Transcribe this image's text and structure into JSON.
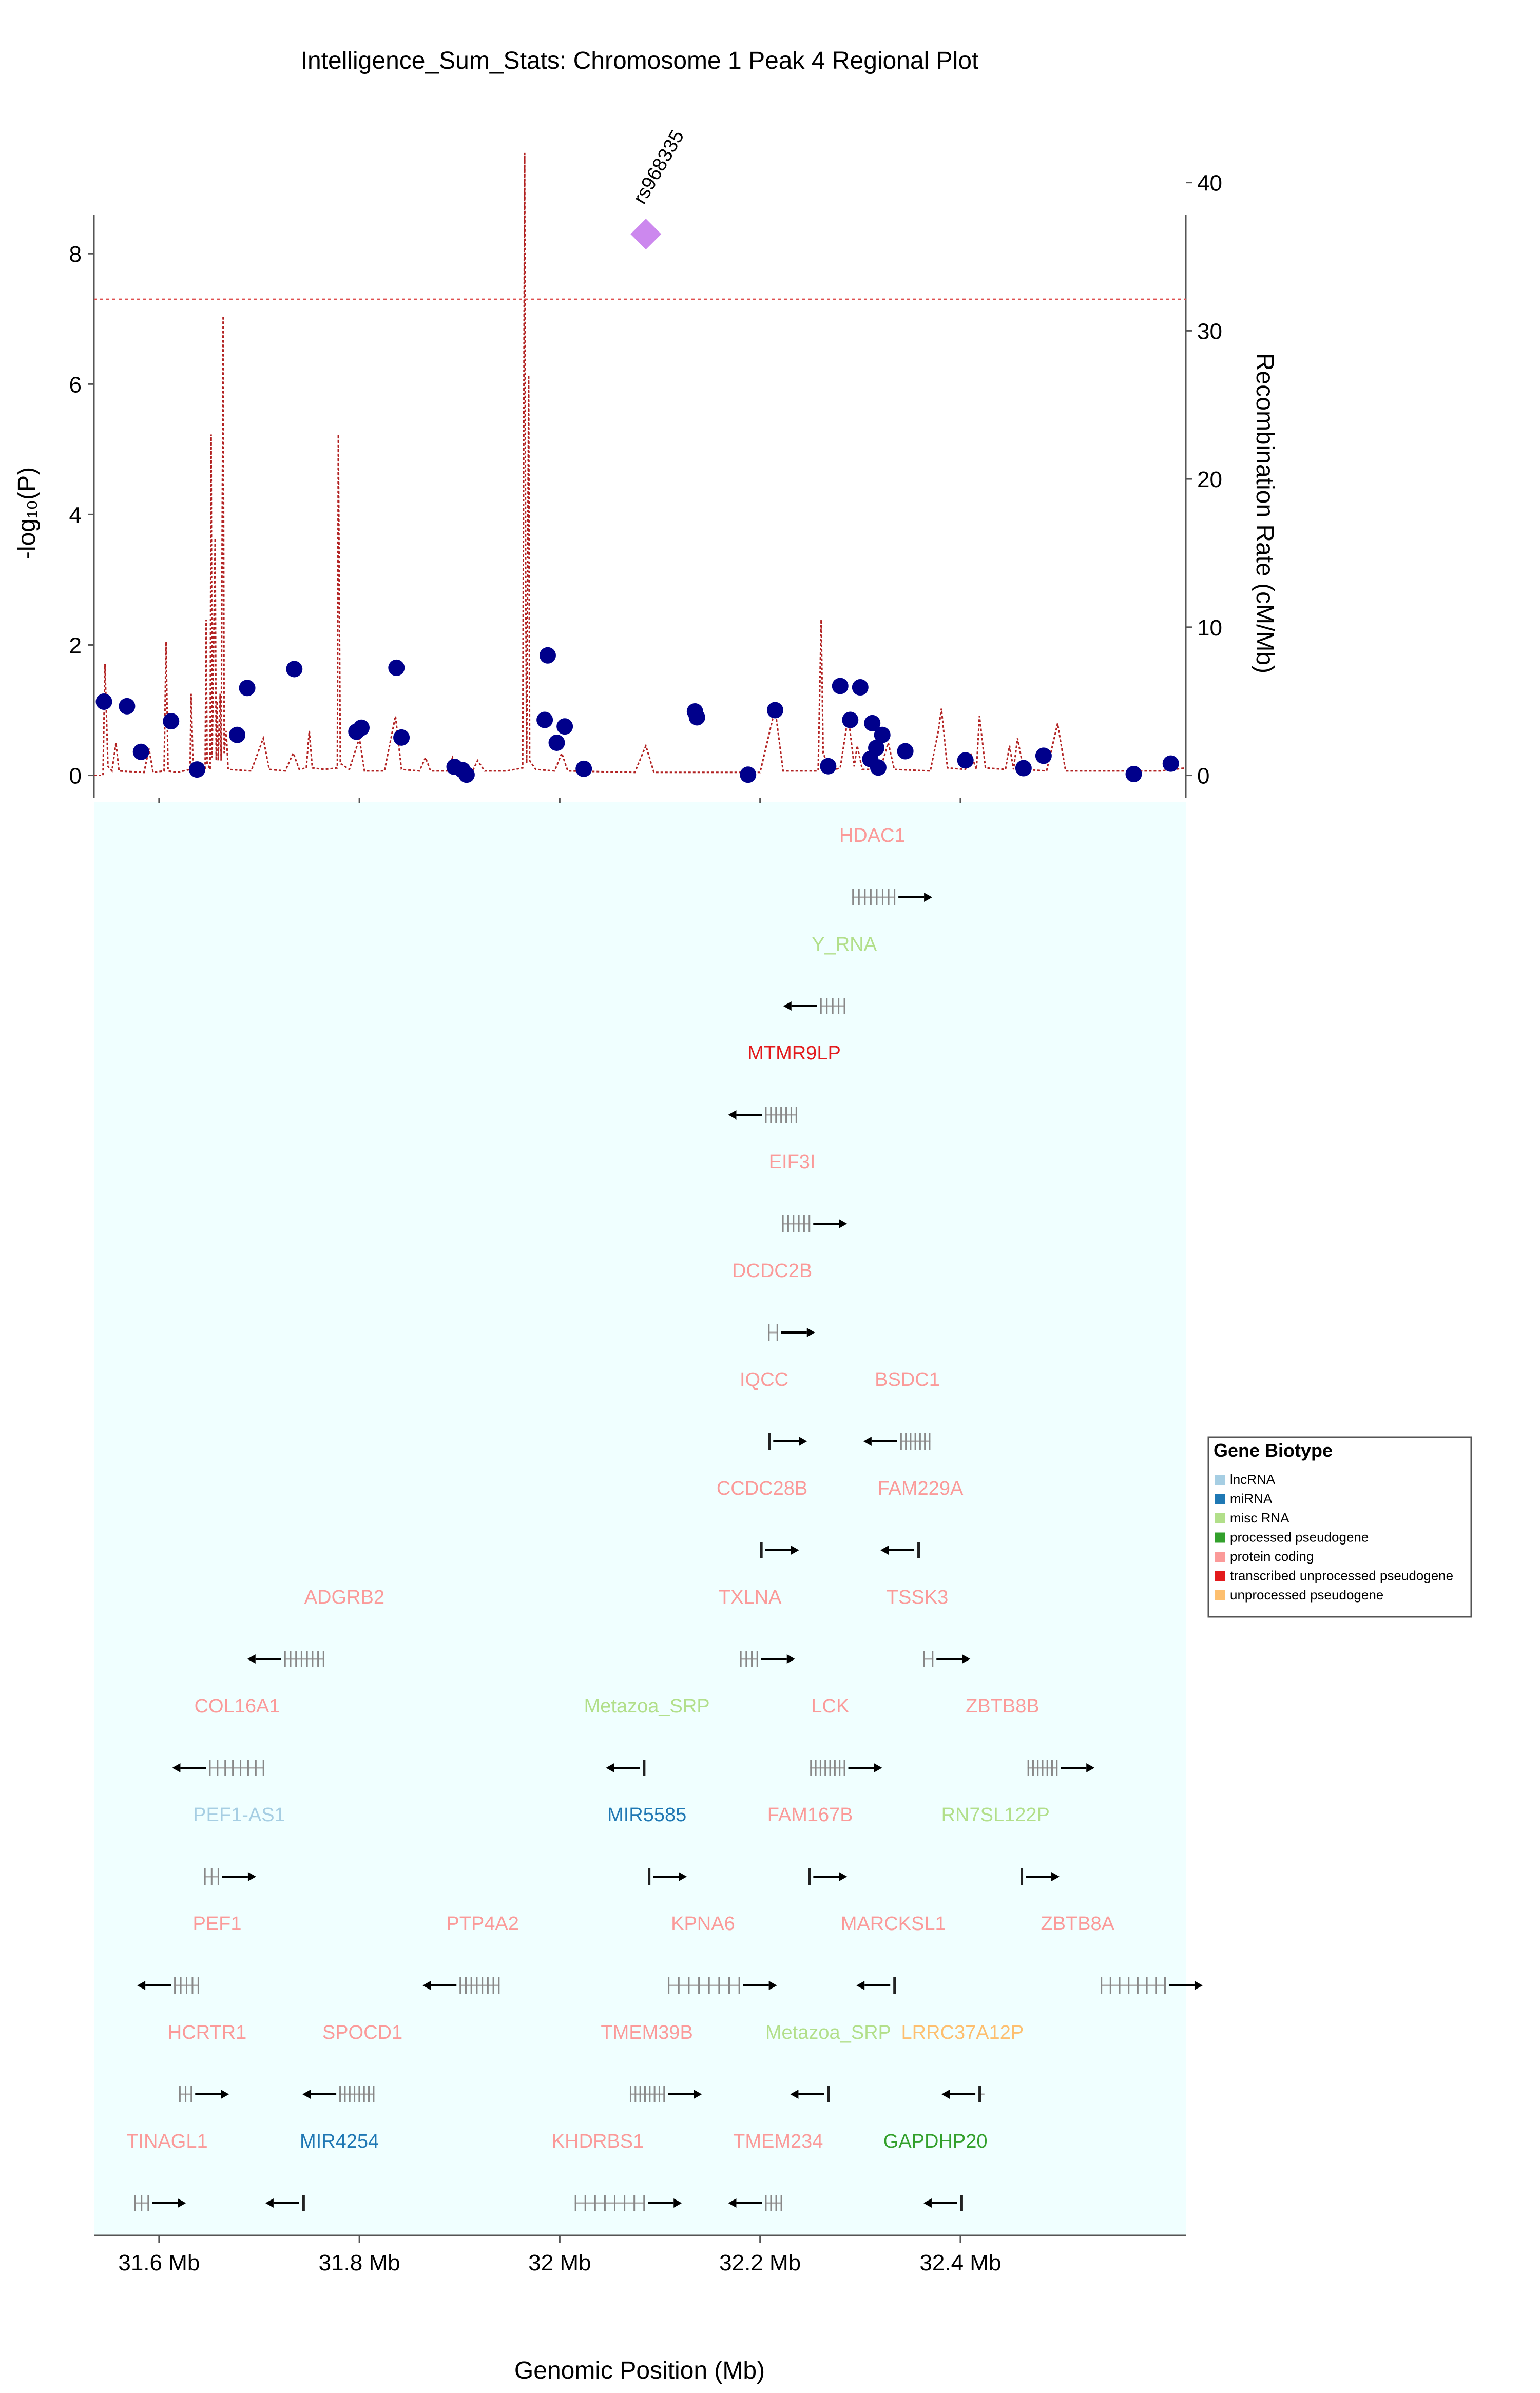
{
  "title": "Intelligence_Sum_Stats: Chromosome 1 Peak 4 Regional Plot",
  "colors": {
    "snp": "#00008b",
    "lead_snp": "#cc88ee",
    "recomb": "#b22222",
    "threshold": "#e05050",
    "gene_track_bg": "#f0ffff",
    "gene_arrow": "#000000"
  },
  "chart_data": {
    "type": "scatter",
    "title": "Intelligence_Sum_Stats: Chromosome 1 Peak 4 Regional Plot",
    "xlabel": "Genomic Position (Mb)",
    "ylabel": "-log₁₀(P)",
    "y2label": "Recombination Rate (cM/Mb)",
    "xlim": [
      31.535,
      32.625
    ],
    "ylim": [
      -0.35,
      8.6
    ],
    "y2lim": [
      -1.54,
      37.84
    ],
    "x_ticks": [
      {
        "value": 31.6,
        "label": "31.6 Mb"
      },
      {
        "value": 31.8,
        "label": "31.8 Mb"
      },
      {
        "value": 32.0,
        "label": "32 Mb"
      },
      {
        "value": 32.2,
        "label": "32.2 Mb"
      },
      {
        "value": 32.4,
        "label": "32.4 Mb"
      }
    ],
    "y_ticks": [
      0,
      2,
      4,
      6,
      8
    ],
    "y2_ticks": [
      0,
      10,
      20,
      30,
      40
    ],
    "significance_threshold": 7.3,
    "lead_snp": {
      "id": "rs968335",
      "x": 32.086,
      "y": 8.3
    },
    "snps": [
      {
        "x": 31.545,
        "y": 1.13
      },
      {
        "x": 31.568,
        "y": 1.06
      },
      {
        "x": 31.582,
        "y": 0.36
      },
      {
        "x": 31.612,
        "y": 0.83
      },
      {
        "x": 31.638,
        "y": 0.09
      },
      {
        "x": 31.678,
        "y": 0.62
      },
      {
        "x": 31.688,
        "y": 1.34
      },
      {
        "x": 31.735,
        "y": 1.63
      },
      {
        "x": 31.797,
        "y": 0.67
      },
      {
        "x": 31.802,
        "y": 0.73
      },
      {
        "x": 31.837,
        "y": 1.65
      },
      {
        "x": 31.842,
        "y": 0.58
      },
      {
        "x": 31.895,
        "y": 0.13
      },
      {
        "x": 31.903,
        "y": 0.08
      },
      {
        "x": 31.907,
        "y": 0.01
      },
      {
        "x": 31.985,
        "y": 0.85
      },
      {
        "x": 31.988,
        "y": 1.84
      },
      {
        "x": 31.997,
        "y": 0.5
      },
      {
        "x": 32.005,
        "y": 0.75
      },
      {
        "x": 32.024,
        "y": 0.1
      },
      {
        "x": 32.135,
        "y": 0.98
      },
      {
        "x": 32.137,
        "y": 0.89
      },
      {
        "x": 32.188,
        "y": 0.01
      },
      {
        "x": 32.215,
        "y": 1.0
      },
      {
        "x": 32.268,
        "y": 0.14
      },
      {
        "x": 32.28,
        "y": 1.37
      },
      {
        "x": 32.29,
        "y": 0.85
      },
      {
        "x": 32.3,
        "y": 1.35
      },
      {
        "x": 32.31,
        "y": 0.25
      },
      {
        "x": 32.312,
        "y": 0.8
      },
      {
        "x": 32.316,
        "y": 0.42
      },
      {
        "x": 32.318,
        "y": 0.12
      },
      {
        "x": 32.322,
        "y": 0.62
      },
      {
        "x": 32.345,
        "y": 0.37
      },
      {
        "x": 32.405,
        "y": 0.23
      },
      {
        "x": 32.463,
        "y": 0.11
      },
      {
        "x": 32.483,
        "y": 0.3
      },
      {
        "x": 32.573,
        "y": 0.02
      },
      {
        "x": 32.61,
        "y": 0.18
      }
    ],
    "recombination": [
      [
        31.535,
        0
      ],
      [
        31.544,
        0
      ],
      [
        31.546,
        7.5
      ],
      [
        31.549,
        0.6
      ],
      [
        31.553,
        0.3
      ],
      [
        31.557,
        2.2
      ],
      [
        31.56,
        0.3
      ],
      [
        31.585,
        0.2
      ],
      [
        31.59,
        1.8
      ],
      [
        31.594,
        0.2
      ],
      [
        31.605,
        0.3
      ],
      [
        31.607,
        9.0
      ],
      [
        31.609,
        0.3
      ],
      [
        31.618,
        0.2
      ],
      [
        31.631,
        0.4
      ],
      [
        31.632,
        5.5
      ],
      [
        31.634,
        0.6
      ],
      [
        31.646,
        0.3
      ],
      [
        31.647,
        10.5
      ],
      [
        31.648,
        0.8
      ],
      [
        31.651,
        0.4
      ],
      [
        31.652,
        23.0
      ],
      [
        31.653,
        1.2
      ],
      [
        31.656,
        16.0
      ],
      [
        31.657,
        1.0
      ],
      [
        31.658,
        5.0
      ],
      [
        31.659,
        1.0
      ],
      [
        31.661,
        5.5
      ],
      [
        31.662,
        1.0
      ],
      [
        31.664,
        31.0
      ],
      [
        31.665,
        1.5
      ],
      [
        31.667,
        3.0
      ],
      [
        31.669,
        0.4
      ],
      [
        31.692,
        0.3
      ],
      [
        31.704,
        2.5
      ],
      [
        31.71,
        0.4
      ],
      [
        31.726,
        0.3
      ],
      [
        31.734,
        1.5
      ],
      [
        31.74,
        0.4
      ],
      [
        31.747,
        0.5
      ],
      [
        31.75,
        3.0
      ],
      [
        31.753,
        0.5
      ],
      [
        31.765,
        0.4
      ],
      [
        31.778,
        0.5
      ],
      [
        31.779,
        23.0
      ],
      [
        31.781,
        0.8
      ],
      [
        31.79,
        0.4
      ],
      [
        31.8,
        2.5
      ],
      [
        31.805,
        0.3
      ],
      [
        31.825,
        0.3
      ],
      [
        31.836,
        4.0
      ],
      [
        31.842,
        0.4
      ],
      [
        31.86,
        0.3
      ],
      [
        31.866,
        1.2
      ],
      [
        31.871,
        0.3
      ],
      [
        31.888,
        0.3
      ],
      [
        31.893,
        1.2
      ],
      [
        31.898,
        0.3
      ],
      [
        31.913,
        0.3
      ],
      [
        31.918,
        1.0
      ],
      [
        31.925,
        0.3
      ],
      [
        31.947,
        0.3
      ],
      [
        31.963,
        0.5
      ],
      [
        31.965,
        42.0
      ],
      [
        31.966,
        14.0
      ],
      [
        31.967,
        0.8
      ],
      [
        31.969,
        27.0
      ],
      [
        31.97,
        1.0
      ],
      [
        31.976,
        0.4
      ],
      [
        31.995,
        0.3
      ],
      [
        32.002,
        1.5
      ],
      [
        32.008,
        0.3
      ],
      [
        32.075,
        0.2
      ],
      [
        32.086,
        2.0
      ],
      [
        32.094,
        0.2
      ],
      [
        32.2,
        0.2
      ],
      [
        32.215,
        4.5
      ],
      [
        32.223,
        0.3
      ],
      [
        32.258,
        0.3
      ],
      [
        32.261,
        10.5
      ],
      [
        32.263,
        1.5
      ],
      [
        32.27,
        0.3
      ],
      [
        32.28,
        0.5
      ],
      [
        32.288,
        4.0
      ],
      [
        32.294,
        0.6
      ],
      [
        32.297,
        2.0
      ],
      [
        32.302,
        0.4
      ],
      [
        32.32,
        0.4
      ],
      [
        32.328,
        2.2
      ],
      [
        32.334,
        0.4
      ],
      [
        32.37,
        0.3
      ],
      [
        32.378,
        3.0
      ],
      [
        32.381,
        4.5
      ],
      [
        32.387,
        0.5
      ],
      [
        32.405,
        0.4
      ],
      [
        32.41,
        1.5
      ],
      [
        32.416,
        0.4
      ],
      [
        32.419,
        4.0
      ],
      [
        32.425,
        0.5
      ],
      [
        32.445,
        0.4
      ],
      [
        32.449,
        2.0
      ],
      [
        32.453,
        0.4
      ],
      [
        32.457,
        2.5
      ],
      [
        32.463,
        0.4
      ],
      [
        32.486,
        0.3
      ],
      [
        32.497,
        3.5
      ],
      [
        32.505,
        0.3
      ],
      [
        32.6,
        0.3
      ],
      [
        32.625,
        0.5
      ]
    ],
    "gene_biotypes": [
      {
        "name": "lncRNA",
        "color": "#a6cee3"
      },
      {
        "name": "miRNA",
        "color": "#1f78b4"
      },
      {
        "name": "misc RNA",
        "color": "#b2df8a"
      },
      {
        "name": "processed pseudogene",
        "color": "#33a02c"
      },
      {
        "name": "protein coding",
        "color": "#fb9a99"
      },
      {
        "name": "transcribed unprocessed pseudogene",
        "color": "#e31a1c"
      },
      {
        "name": "unprocessed pseudogene",
        "color": "#fdbf6f"
      }
    ],
    "legend_title": "Gene Biotype",
    "legend_position": "right",
    "genes": [
      {
        "name": "HDAC1",
        "biotype": "protein coding",
        "row": 1,
        "start": 32.292,
        "end": 32.335,
        "strand": "+",
        "label_x": 32.312
      },
      {
        "name": "Y_RNA",
        "biotype": "misc RNA",
        "row": 2,
        "start": 32.26,
        "end": 32.285,
        "strand": "-",
        "label_x": 32.284
      },
      {
        "name": "MTMR9LP",
        "biotype": "transcribed unprocessed pseudogene",
        "row": 3,
        "start": 32.205,
        "end": 32.237,
        "strand": "-",
        "label_x": 32.234
      },
      {
        "name": "EIF3I",
        "biotype": "protein coding",
        "row": 4,
        "start": 32.222,
        "end": 32.25,
        "strand": "+",
        "label_x": 32.232
      },
      {
        "name": "DCDC2B",
        "biotype": "protein coding",
        "row": 5,
        "start": 32.208,
        "end": 32.218,
        "strand": "+",
        "label_x": 32.212
      },
      {
        "name": "IQCC",
        "biotype": "protein coding",
        "row": 6,
        "start": 32.208,
        "end": 32.21,
        "strand": "+",
        "label_x": 32.204
      },
      {
        "name": "BSDC1",
        "biotype": "protein coding",
        "row": 6,
        "start": 32.34,
        "end": 32.37,
        "strand": "-",
        "label_x": 32.347
      },
      {
        "name": "CCDC28B",
        "biotype": "protein coding",
        "row": 7,
        "start": 32.2,
        "end": 32.202,
        "strand": "+",
        "label_x": 32.202
      },
      {
        "name": "FAM229A",
        "biotype": "protein coding",
        "row": 7,
        "start": 32.357,
        "end": 32.359,
        "strand": "-",
        "label_x": 32.36
      },
      {
        "name": "TXLNA",
        "biotype": "protein coding",
        "row": 8,
        "start": 32.18,
        "end": 32.198,
        "strand": "+",
        "label_x": 32.19
      },
      {
        "name": "TSSK3",
        "biotype": "protein coding",
        "row": 8,
        "start": 32.363,
        "end": 32.373,
        "strand": "+",
        "label_x": 32.357
      },
      {
        "name": "ADGRB2",
        "biotype": "protein coding",
        "row": 8,
        "start": 31.725,
        "end": 31.765,
        "strand": "-",
        "label_x": 31.785
      },
      {
        "name": "COL16A1",
        "biotype": "protein coding",
        "row": 9,
        "start": 31.65,
        "end": 31.705,
        "strand": "-",
        "label_x": 31.678
      },
      {
        "name": "Metazoa_SRP",
        "biotype": "misc RNA",
        "row": 9,
        "start": 32.083,
        "end": 32.086,
        "strand": "-",
        "label_x": 32.087
      },
      {
        "name": "LCK",
        "biotype": "protein coding",
        "row": 9,
        "start": 32.25,
        "end": 32.285,
        "strand": "+",
        "label_x": 32.27
      },
      {
        "name": "ZBTB8B",
        "biotype": "protein coding",
        "row": 9,
        "start": 32.467,
        "end": 32.497,
        "strand": "+",
        "label_x": 32.442
      },
      {
        "name": "PEF1-AS1",
        "biotype": "lncRNA",
        "row": 10,
        "start": 31.645,
        "end": 31.66,
        "strand": "+",
        "label_x": 31.68
      },
      {
        "name": "MIR5585",
        "biotype": "miRNA",
        "row": 10,
        "start": 32.088,
        "end": 32.09,
        "strand": "+",
        "label_x": 32.087
      },
      {
        "name": "FAM167B",
        "biotype": "protein coding",
        "row": 10,
        "start": 32.248,
        "end": 32.25,
        "strand": "+",
        "label_x": 32.25
      },
      {
        "name": "RN7SL122P",
        "biotype": "misc RNA",
        "row": 10,
        "start": 32.46,
        "end": 32.462,
        "strand": "+",
        "label_x": 32.435
      },
      {
        "name": "PEF1",
        "biotype": "protein coding",
        "row": 11,
        "start": 31.615,
        "end": 31.64,
        "strand": "-",
        "label_x": 31.658
      },
      {
        "name": "PTP4A2",
        "biotype": "protein coding",
        "row": 11,
        "start": 31.9,
        "end": 31.94,
        "strand": "-",
        "label_x": 31.923
      },
      {
        "name": "KPNA6",
        "biotype": "protein coding",
        "row": 11,
        "start": 32.108,
        "end": 32.18,
        "strand": "+",
        "label_x": 32.143
      },
      {
        "name": "MARCKSL1",
        "biotype": "protein coding",
        "row": 11,
        "start": 32.333,
        "end": 32.335,
        "strand": "-",
        "label_x": 32.333
      },
      {
        "name": "ZBTB8A",
        "biotype": "protein coding",
        "row": 11,
        "start": 32.54,
        "end": 32.605,
        "strand": "+",
        "label_x": 32.517
      },
      {
        "name": "HCRTR1",
        "biotype": "protein coding",
        "row": 12,
        "start": 31.62,
        "end": 31.633,
        "strand": "+",
        "label_x": 31.648
      },
      {
        "name": "SPOCD1",
        "biotype": "protein coding",
        "row": 12,
        "start": 31.78,
        "end": 31.815,
        "strand": "-",
        "label_x": 31.803
      },
      {
        "name": "TMEM39B",
        "biotype": "protein coding",
        "row": 12,
        "start": 32.07,
        "end": 32.105,
        "strand": "+",
        "label_x": 32.087
      },
      {
        "name": "Metazoa_SRP",
        "biotype": "misc RNA",
        "row": 12,
        "start": 32.267,
        "end": 32.269,
        "strand": "-",
        "label_x": 32.268
      },
      {
        "name": "LRRC37A12P",
        "biotype": "unprocessed pseudogene",
        "row": 12,
        "start": 32.418,
        "end": 32.424,
        "strand": "-",
        "label_x": 32.402
      },
      {
        "name": "TINAGL1",
        "biotype": "protein coding",
        "row": 13,
        "start": 31.575,
        "end": 31.59,
        "strand": "+",
        "label_x": 31.608
      },
      {
        "name": "MIR4254",
        "biotype": "miRNA",
        "row": 13,
        "start": 31.743,
        "end": 31.745,
        "strand": "-",
        "label_x": 31.78
      },
      {
        "name": "KHDRBS1",
        "biotype": "protein coding",
        "row": 13,
        "start": 32.015,
        "end": 32.085,
        "strand": "+",
        "label_x": 32.038
      },
      {
        "name": "TMEM234",
        "biotype": "protein coding",
        "row": 13,
        "start": 32.205,
        "end": 32.222,
        "strand": "-",
        "label_x": 32.218
      },
      {
        "name": "GAPDHP20",
        "biotype": "processed pseudogene",
        "row": 13,
        "start": 32.4,
        "end": 32.402,
        "strand": "-",
        "label_x": 32.375
      }
    ]
  }
}
